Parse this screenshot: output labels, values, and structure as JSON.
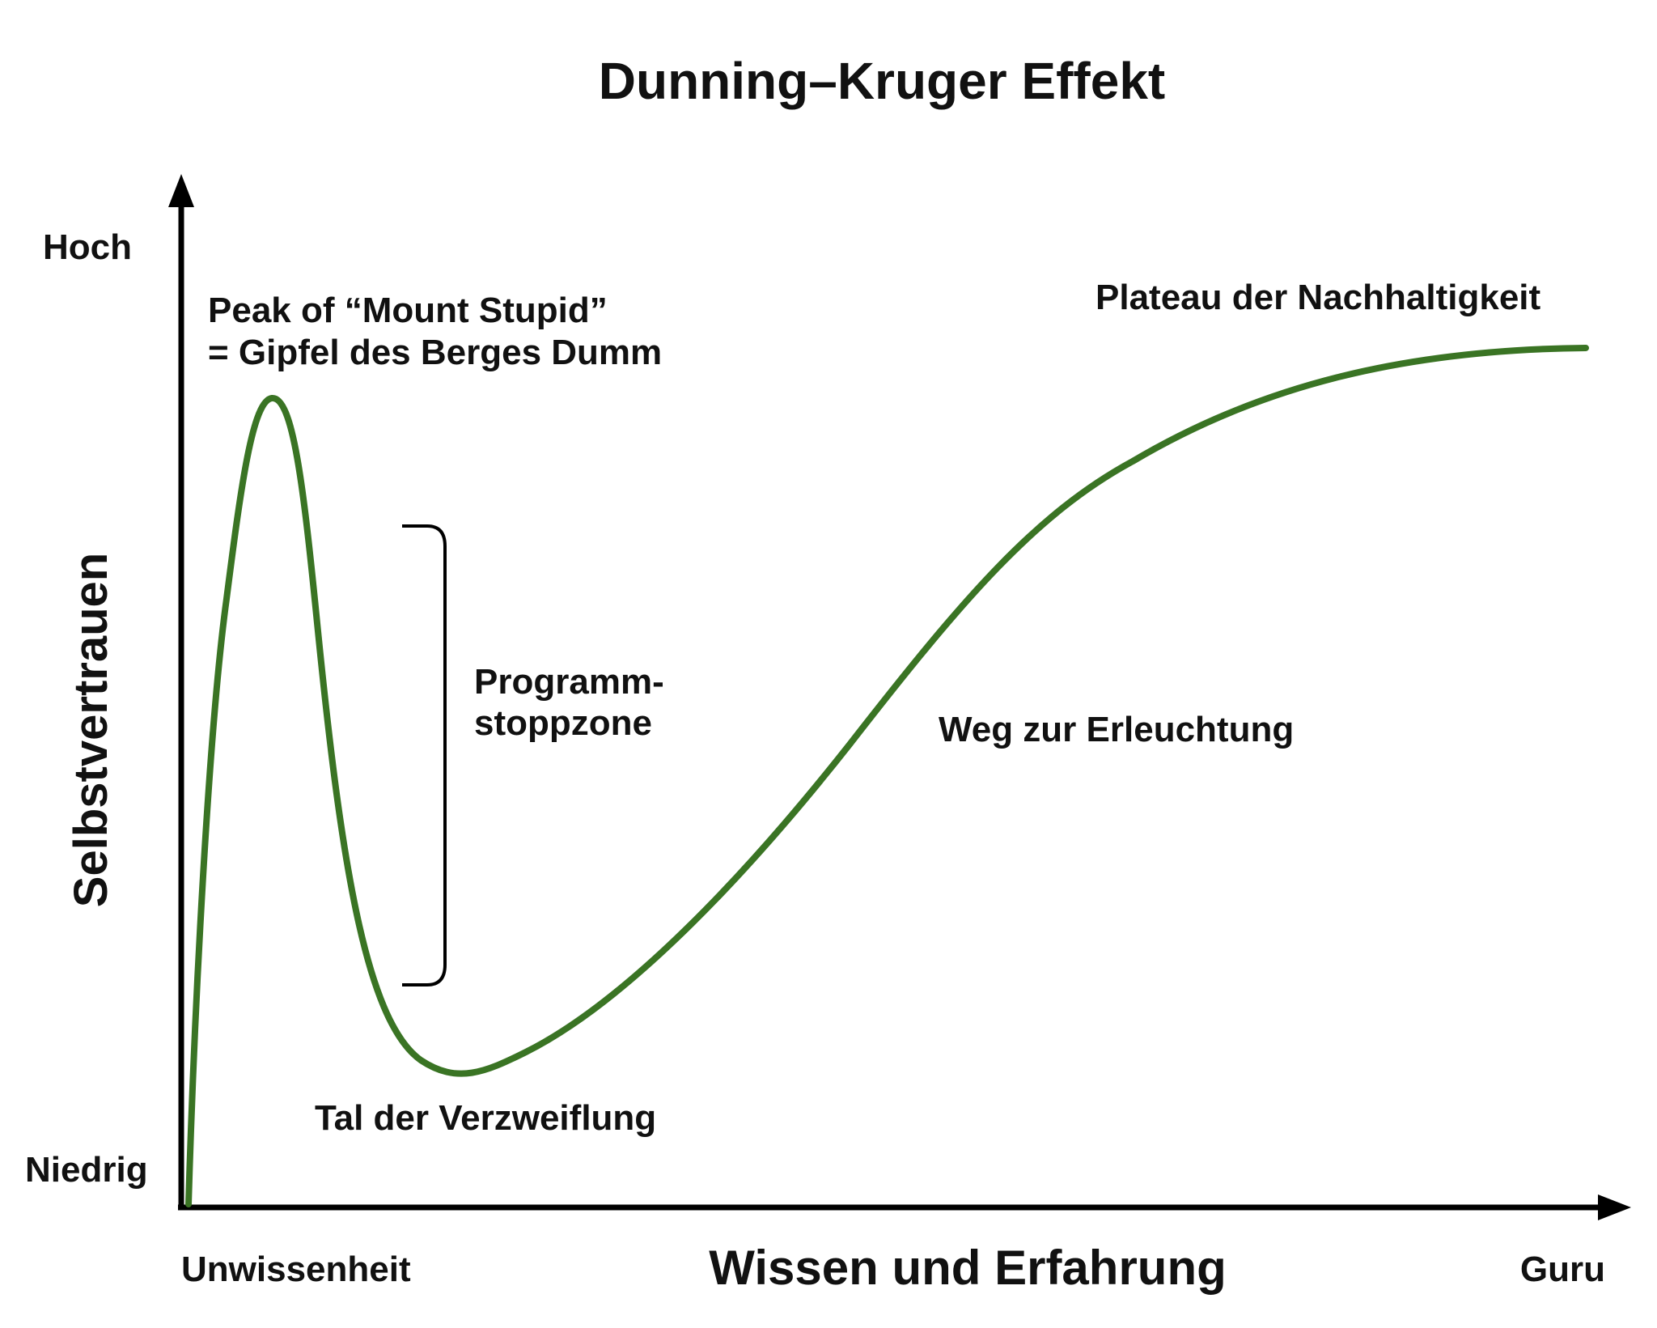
{
  "title": "Dunning–Kruger Effekt",
  "axes": {
    "x_label": "Wissen und Erfahrung",
    "x_start_label": "Unwissenheit",
    "x_end_label": "Guru",
    "y_label": "Selbstvertrauen",
    "y_high_label": "Hoch",
    "y_low_label": "Niedrig"
  },
  "annotations": {
    "peak_line1": "Peak of “Mount Stupid”",
    "peak_line2": "= Gipfel des Berges Dumm",
    "stop_zone_line1": "Programm-",
    "stop_zone_line2": "stoppzone",
    "valley": "Tal der Verzweiflung",
    "slope": "Weg zur Erleuchtung",
    "plateau": "Plateau der Nachhaltigkeit"
  },
  "colors": {
    "curve": "#3a7424",
    "axis": "#000000",
    "text": "#111111"
  }
}
